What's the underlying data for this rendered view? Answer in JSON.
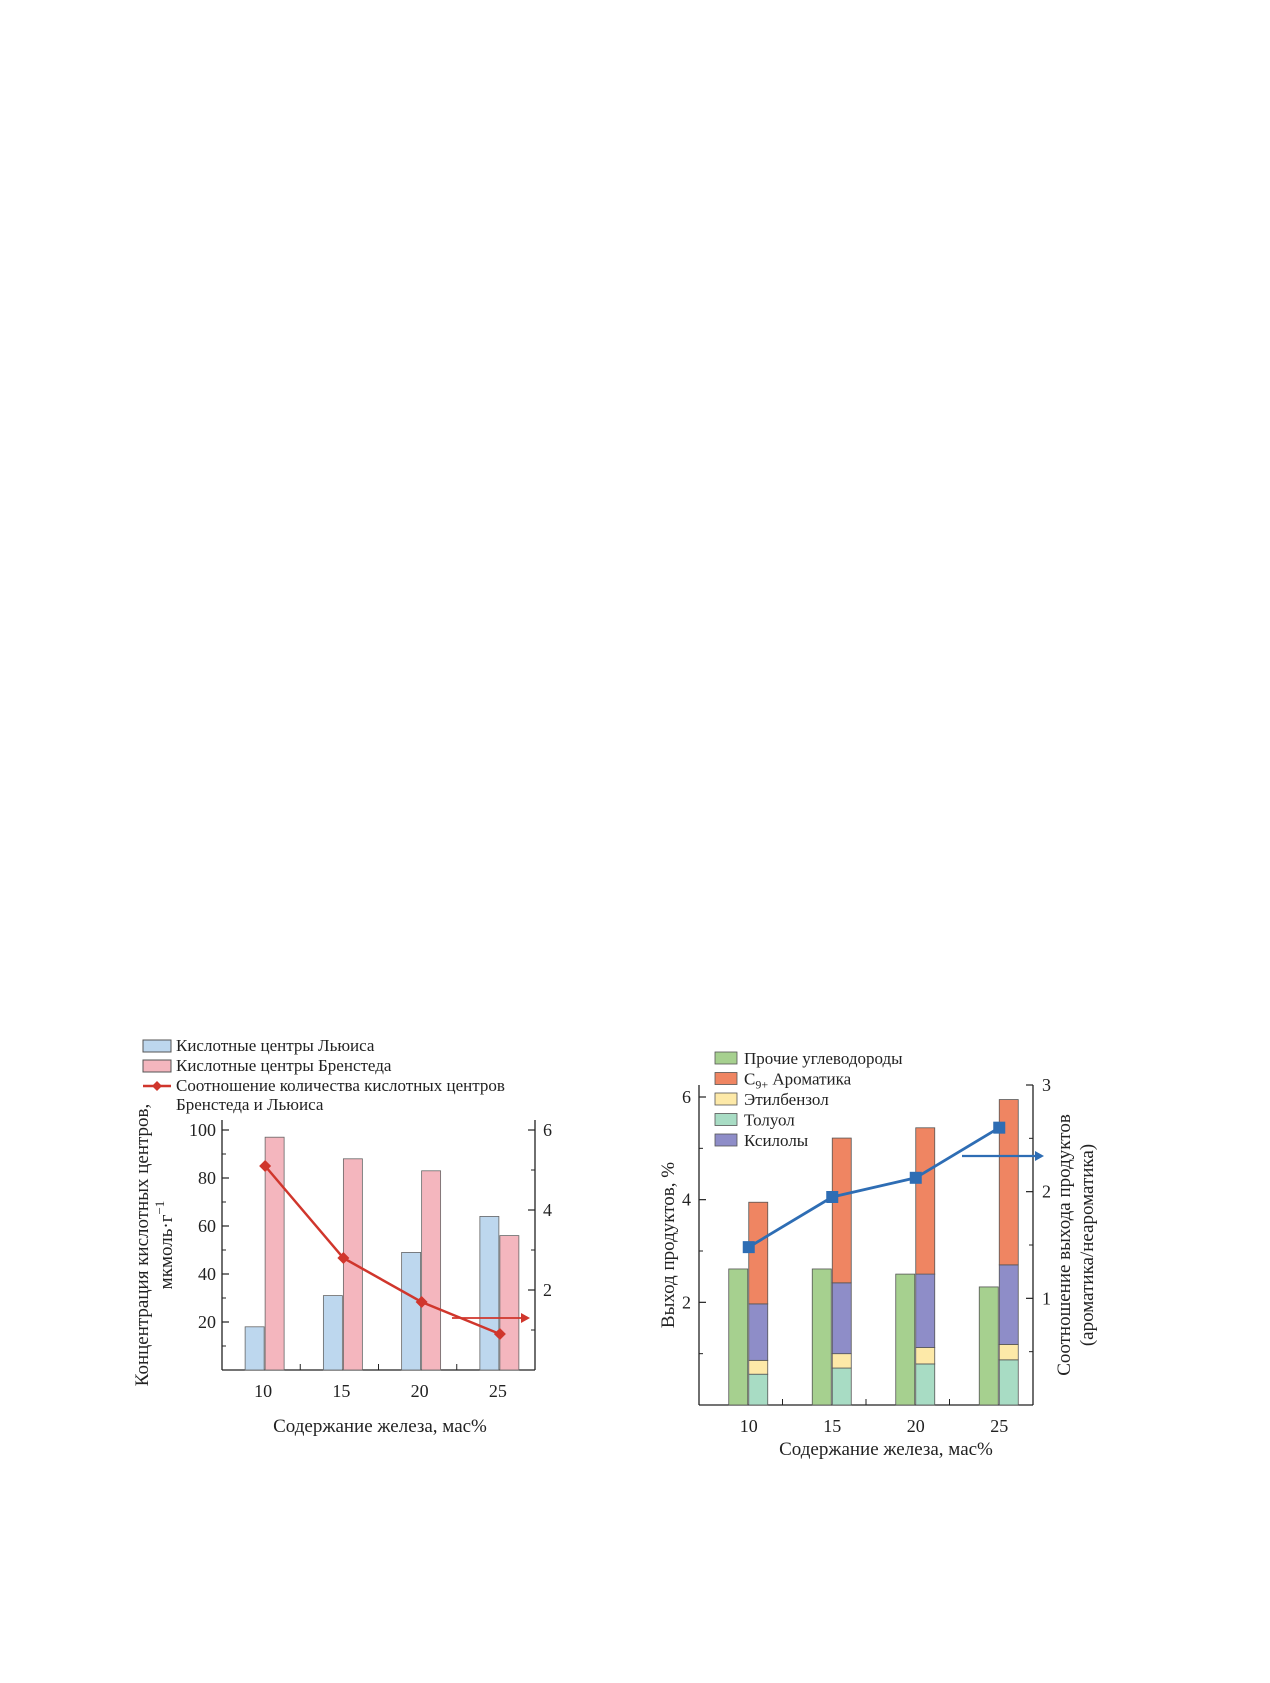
{
  "chart_data": [
    {
      "type": "bar",
      "categories": [
        "10",
        "15",
        "20",
        "25"
      ],
      "xlabel": "Содержание железа, мас%",
      "ylabel_line1": "Концентрация кислотных центров,",
      "ylabel_line2": "мкмоль·г",
      "ylabel_sup": "−1",
      "ylim": [
        0,
        100
      ],
      "y_ticks": [
        "20",
        "40",
        "60",
        "80",
        "100"
      ],
      "y2lim": [
        0,
        6
      ],
      "y2_ticks": [
        "2",
        "4",
        "6"
      ],
      "legend_position": "top-left",
      "colors": {
        "lewis": "#bdd7ee",
        "bronsted": "#f4b6be",
        "ratio": "#d0362c"
      },
      "series": [
        {
          "name": "Кислотные центры Льюиса",
          "type": "bar",
          "axis": "left",
          "values": [
            18,
            31,
            49,
            64
          ]
        },
        {
          "name": "Кислотные центры Бренстеда",
          "type": "bar",
          "axis": "left",
          "values": [
            97,
            88,
            83,
            56
          ]
        },
        {
          "name": "Соотношение количества кислотных центров Бренстеда и Льюиса",
          "type": "line",
          "axis": "right",
          "values": [
            5.1,
            2.8,
            1.7,
            0.9
          ]
        }
      ],
      "legend_line2_suffix": "Бренстеда и Льюиса"
    },
    {
      "type": "bar",
      "categories": [
        "10",
        "15",
        "20",
        "25"
      ],
      "xlabel": "Содержание железа, мас%",
      "ylabel": "Выход продуктов, %",
      "y2label_line1": "Соотношение выхода продуктов",
      "y2label_line2": "(ароматика/неароматика)",
      "ylim": [
        0,
        6
      ],
      "y_ticks": [
        "2",
        "4",
        "6"
      ],
      "y2lim": [
        0,
        3
      ],
      "y2_ticks": [
        "1",
        "2",
        "3"
      ],
      "legend_position": "top-left",
      "colors": {
        "other": "#a6d08f",
        "c9": "#ef8562",
        "ethyl": "#fde9a8",
        "toluene": "#a8dcc4",
        "xylene": "#8e8dc8",
        "ratio": "#2e6db4"
      },
      "series": [
        {
          "name": "Прочие углеводороды",
          "type": "bar",
          "axis": "left",
          "values": [
            2.65,
            2.65,
            2.55,
            2.3
          ]
        },
        {
          "name": "Толуол",
          "type": "stacked",
          "axis": "left",
          "values": [
            0.6,
            0.72,
            0.8,
            0.88
          ]
        },
        {
          "name": "Этилбензол",
          "type": "stacked",
          "axis": "left",
          "values": [
            0.27,
            0.28,
            0.32,
            0.3
          ]
        },
        {
          "name": "Ксилолы",
          "type": "stacked",
          "axis": "left",
          "values": [
            1.1,
            1.38,
            1.43,
            1.55
          ]
        },
        {
          "name": "C₉₊ Ароматика",
          "type": "stacked",
          "axis": "left",
          "values": [
            1.98,
            2.82,
            2.85,
            3.22
          ]
        },
        {
          "name": "ratio",
          "type": "line",
          "axis": "right",
          "values": [
            1.48,
            1.95,
            2.13,
            2.6
          ]
        }
      ],
      "legend_labels": {
        "other": "Прочие углеводороды",
        "c9_base": "C",
        "c9_sub": "9+",
        "c9_rest": " Ароматика",
        "ethyl": "Этилбензол",
        "toluene": "Толуол",
        "xylene": "Ксилолы"
      }
    }
  ]
}
